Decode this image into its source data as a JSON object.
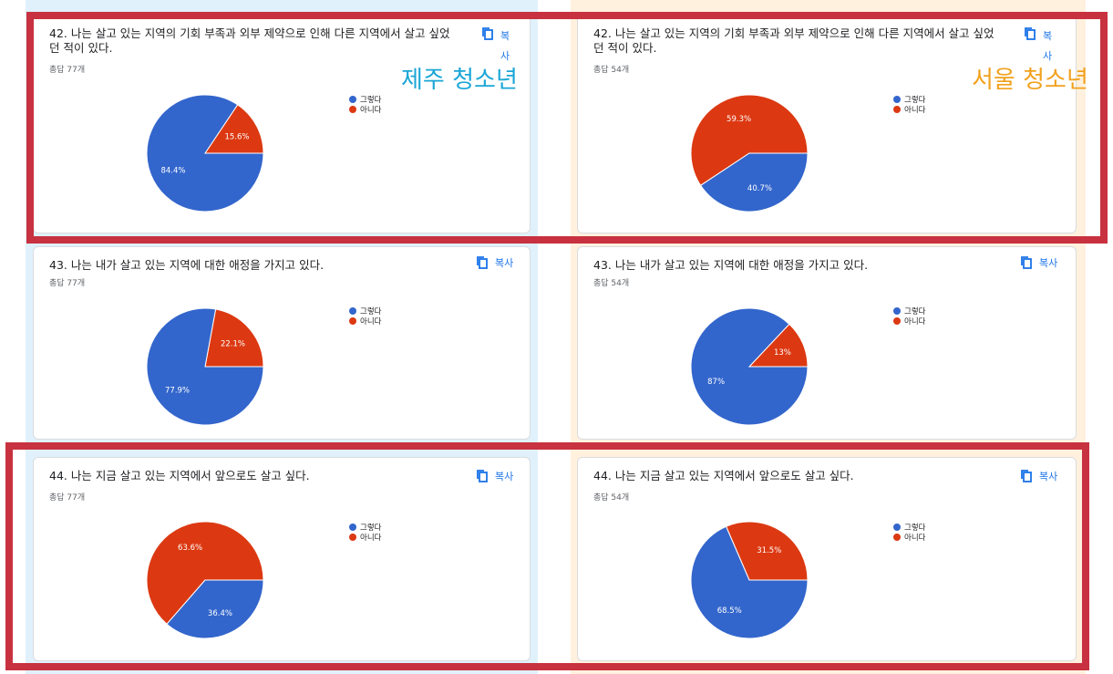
{
  "labels": {
    "left_region": "제주 청소년",
    "right_region": "서울 청소년"
  },
  "copy_label": "복사",
  "colors": {
    "yes": "#3366cc",
    "no": "#dc3912"
  },
  "legend": [
    "그렇다",
    "아니다"
  ],
  "cards": [
    {
      "id": "q42-jeju",
      "title": "42. 나는 살고 있는 지역의 기회 부족과 외부 제약으로 인해 다른 지역에서 살고 싶었던 적이 있다.",
      "count": "총답 77개"
    },
    {
      "id": "q42-seoul",
      "title": "42. 나는 살고 있는 지역의 기회 부족과 외부 제약으로 인해 다른 지역에서 살고 싶었던 적이 있다.",
      "count": "총답 54개"
    },
    {
      "id": "q43-jeju",
      "title": "43. 나는 내가 살고 있는 지역에 대한 애정을 가지고 있다.",
      "count": "총답 77개"
    },
    {
      "id": "q43-seoul",
      "title": "43. 나는 내가 살고 있는 지역에 대한 애정을 가지고 있다.",
      "count": "총답 54개"
    },
    {
      "id": "q44-jeju",
      "title": "44. 나는 지금 살고 있는 지역에서 앞으로도 살고 싶다.",
      "count": "총답 77개"
    },
    {
      "id": "q44-seoul",
      "title": "44. 나는 지금 살고 있는 지역에서 앞으로도 살고 싶다.",
      "count": "총답 54개"
    }
  ],
  "chart_data": [
    {
      "type": "pie",
      "title": "42. 나는 살고 있는 지역의 기회 부족과 외부 제약으로 인해 다른 지역에서 살고 싶었던 적이 있다.",
      "categories": [
        "그렇다",
        "아니다"
      ],
      "values": [
        84.4,
        15.6
      ],
      "labels": [
        "84.4%",
        "15.6%"
      ]
    },
    {
      "type": "pie",
      "title": "42. 나는 살고 있는 지역의 기회 부족과 외부 제약으로 인해 다른 지역에서 살고 싶었던 적이 있다.",
      "categories": [
        "그렇다",
        "아니다"
      ],
      "values": [
        40.7,
        59.3
      ],
      "labels": [
        "40.7%",
        "59.3%"
      ]
    },
    {
      "type": "pie",
      "title": "43. 나는 내가 살고 있는 지역에 대한 애정을 가지고 있다.",
      "categories": [
        "그렇다",
        "아니다"
      ],
      "values": [
        77.9,
        22.1
      ],
      "labels": [
        "77.9%",
        "22.1%"
      ]
    },
    {
      "type": "pie",
      "title": "43. 나는 내가 살고 있는 지역에 대한 애정을 가지고 있다.",
      "categories": [
        "그렇다",
        "아니다"
      ],
      "values": [
        87,
        13
      ],
      "labels": [
        "87%",
        "13%"
      ]
    },
    {
      "type": "pie",
      "title": "44. 나는 지금 살고 있는 지역에서 앞으로도 살고 싶다.",
      "categories": [
        "그렇다",
        "아니다"
      ],
      "values": [
        36.4,
        63.6
      ],
      "labels": [
        "36.4%",
        "63.6%"
      ]
    },
    {
      "type": "pie",
      "title": "44. 나는 지금 살고 있는 지역에서 앞으로도 살고 싶다.",
      "categories": [
        "그렇다",
        "아니다"
      ],
      "values": [
        68.5,
        31.5
      ],
      "labels": [
        "68.5%",
        "31.5%"
      ]
    }
  ]
}
